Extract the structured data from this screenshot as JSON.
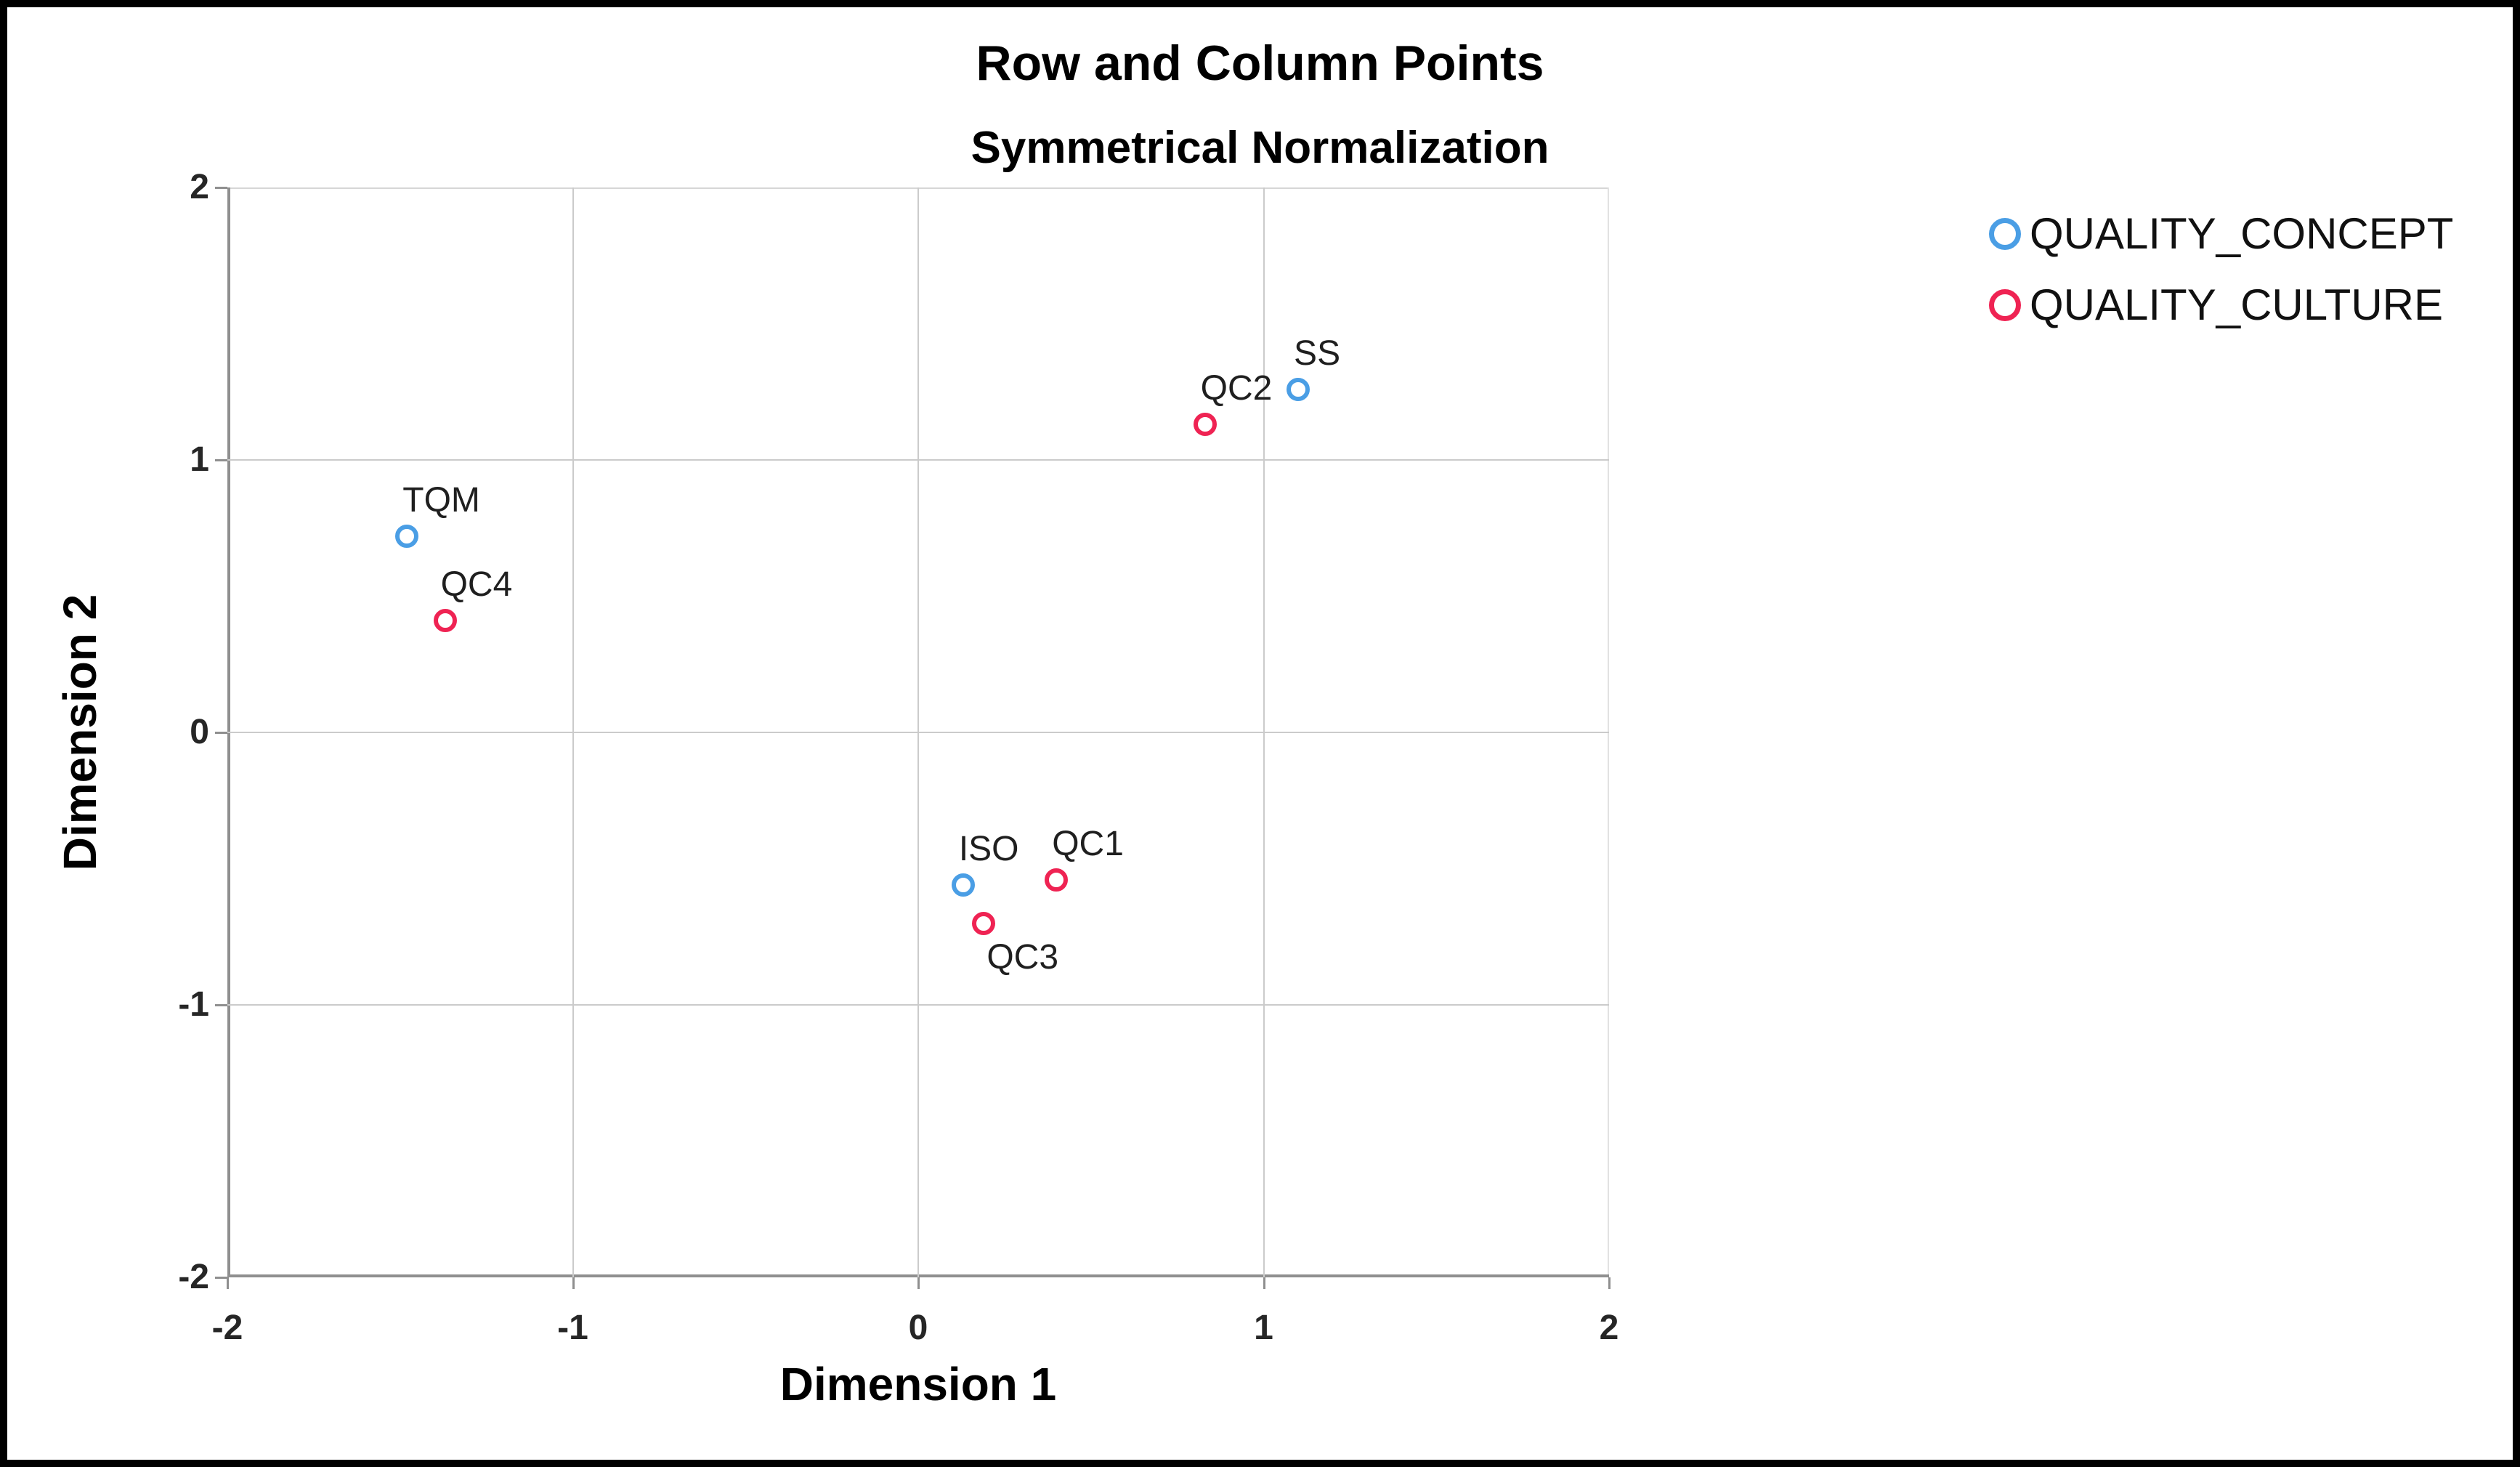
{
  "chart_data": {
    "type": "scatter",
    "title": "Row and Column Points",
    "subtitle": "Symmetrical Normalization",
    "xlabel": "Dimension 1",
    "ylabel": "Dimension 2",
    "xlim": [
      -2,
      2
    ],
    "ylim": [
      -2,
      2
    ],
    "x_ticks": [
      -2,
      -1,
      0,
      1,
      2
    ],
    "y_ticks": [
      -2,
      -1,
      0,
      1,
      2
    ],
    "grid": true,
    "legend_position": "top-right",
    "marker_style": "open-circle",
    "series": [
      {
        "name": "QUALITY_CONCEPT",
        "color": "#4A9EE5",
        "points": [
          {
            "label": "TQM",
            "x": -1.48,
            "y": 0.72,
            "label_pos": "above-right"
          },
          {
            "label": "ISO",
            "x": 0.13,
            "y": -0.56,
            "label_pos": "above-right"
          },
          {
            "label": "SS",
            "x": 1.1,
            "y": 1.26,
            "label_pos": "above-right"
          }
        ]
      },
      {
        "name": "QUALITY_CULTURE",
        "color": "#EF2353",
        "points": [
          {
            "label": "QC4",
            "x": -1.37,
            "y": 0.41,
            "label_pos": "above-right"
          },
          {
            "label": "QC2",
            "x": 0.83,
            "y": 1.13,
            "label_pos": "above-right"
          },
          {
            "label": "QC1",
            "x": 0.4,
            "y": -0.54,
            "label_pos": "above-right"
          },
          {
            "label": "QC3",
            "x": 0.19,
            "y": -0.7,
            "label_pos": "below-right"
          }
        ]
      }
    ]
  }
}
